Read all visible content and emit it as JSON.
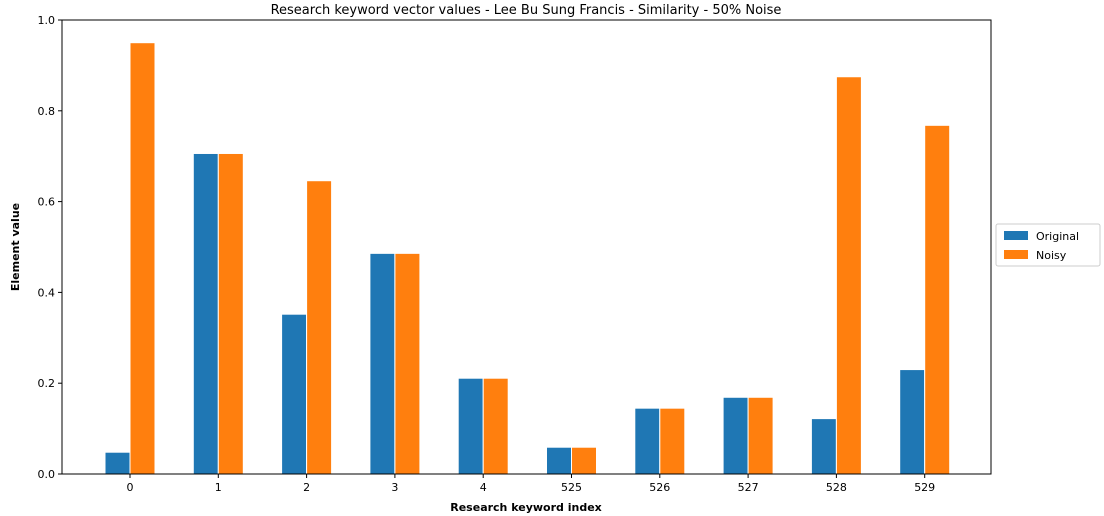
{
  "chart_data": {
    "type": "bar",
    "title": "Research keyword vector values - Lee Bu Sung Francis - Similarity - 50% Noise",
    "xlabel": "Research keyword index",
    "ylabel": "Element value",
    "categories": [
      "0",
      "1",
      "2",
      "3",
      "4",
      "525",
      "526",
      "527",
      "528",
      "529"
    ],
    "series": [
      {
        "name": "Original",
        "color": "#1f77b4",
        "values": [
          0.048,
          0.706,
          0.352,
          0.486,
          0.211,
          0.059,
          0.145,
          0.169,
          0.122,
          0.23
        ]
      },
      {
        "name": "Noisy",
        "color": "#ff7f0e",
        "values": [
          0.95,
          0.706,
          0.646,
          0.486,
          0.211,
          0.059,
          0.145,
          0.169,
          0.875,
          0.768
        ]
      }
    ],
    "ylim": [
      0,
      1.0
    ],
    "yticks": [
      "0.0",
      "0.2",
      "0.4",
      "0.6",
      "0.8",
      "1.0"
    ],
    "grid": false,
    "legend_position": "right-outside"
  }
}
